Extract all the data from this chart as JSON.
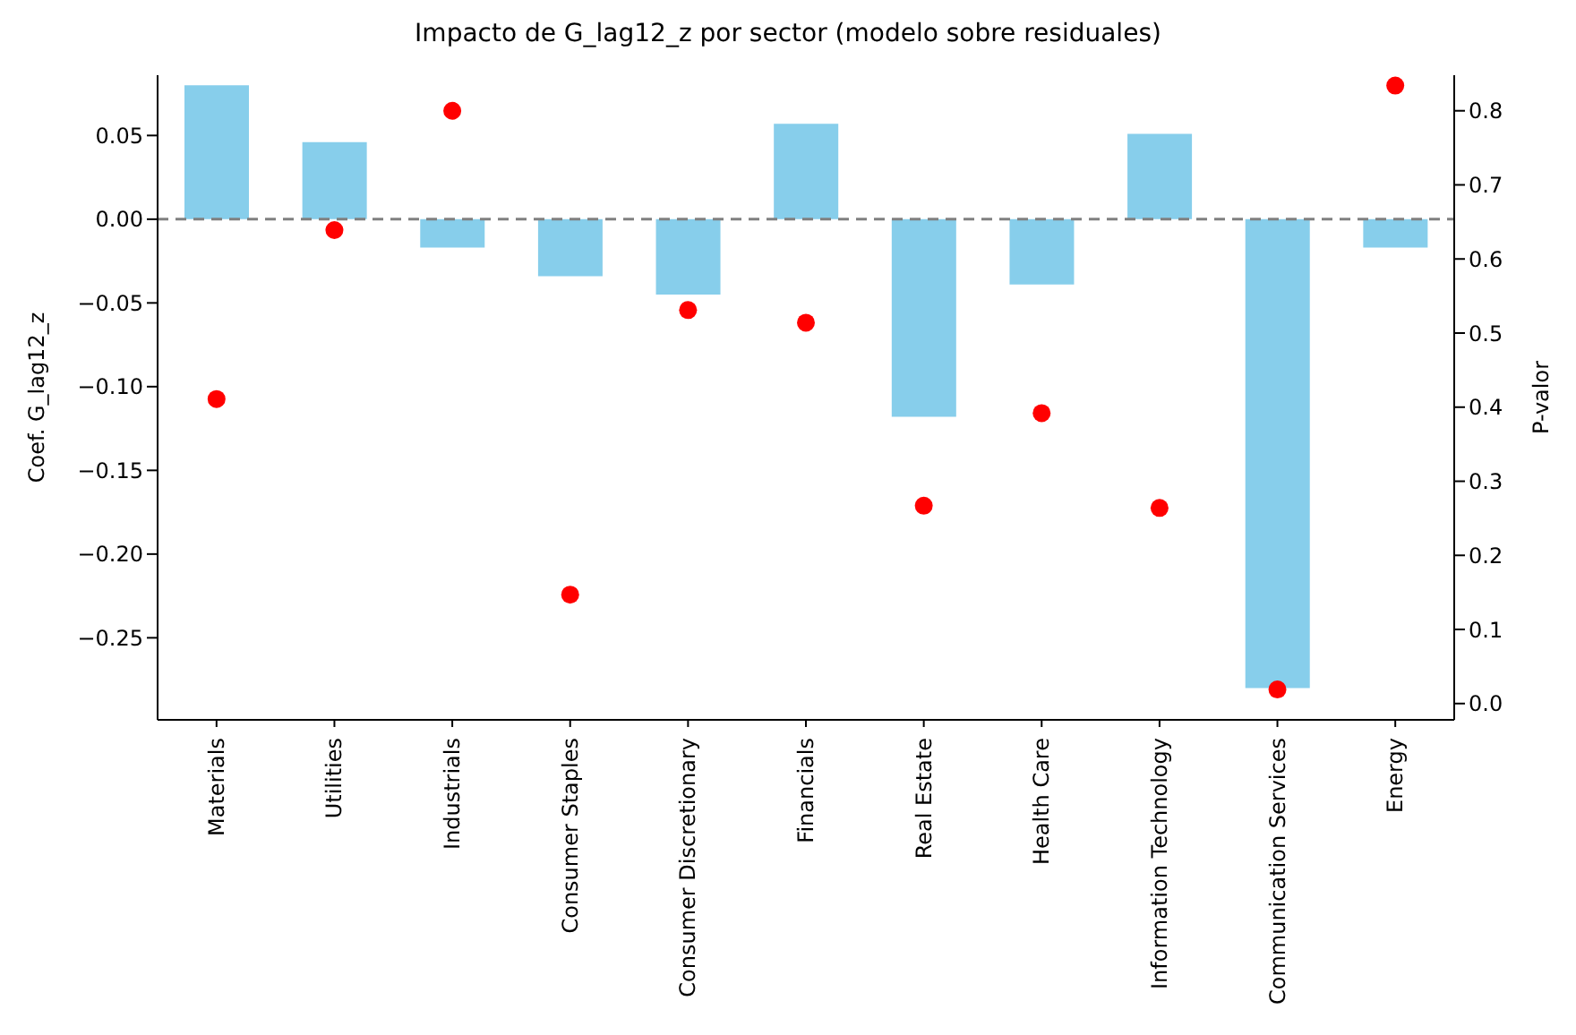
{
  "chart_data": {
    "type": "bar",
    "title": "Impacto de G_lag12_z por sector (modelo sobre residuales)",
    "ylabel": "Coef. G_lag12_z",
    "y2label": "P-valor",
    "marker": "circle",
    "categories": [
      "Materials",
      "Utilities",
      "Industrials",
      "Consumer Staples",
      "Consumer Discretionary",
      "Financials",
      "Real Estate",
      "Health Care",
      "Information Technology",
      "Communication Services",
      "Energy"
    ],
    "series": [
      {
        "color": "#87ceeb",
        "values": [
          0.08,
          0.046,
          -0.017,
          -0.034,
          -0.045,
          0.057,
          -0.118,
          -0.039,
          0.051,
          -0.28,
          -0.017
        ]
      },
      {
        "type": "scatter",
        "axis": "y2",
        "color": "#ff0000",
        "values": [
          0.411,
          0.639,
          0.8,
          0.147,
          0.531,
          0.514,
          0.267,
          0.392,
          0.264,
          0.019,
          0.834
        ]
      }
    ],
    "ylim": [
      -0.299,
      0.086
    ],
    "yticks": [
      {
        "value": -0.25,
        "label": "−0.25"
      },
      {
        "value": -0.2,
        "label": "−0.20"
      },
      {
        "value": -0.15,
        "label": "−0.15"
      },
      {
        "value": -0.1,
        "label": "−0.10"
      },
      {
        "value": -0.05,
        "label": "−0.05"
      },
      {
        "value": 0,
        "label": "0.00"
      },
      {
        "value": 0.05,
        "label": "0.05"
      }
    ],
    "y2lim": [
      -0.022,
      0.848
    ],
    "y2ticks": [
      {
        "value": 0,
        "label": "0.0"
      },
      {
        "value": 0.1,
        "label": "0.1"
      },
      {
        "value": 0.2,
        "label": "0.2"
      },
      {
        "value": 0.3,
        "label": "0.3"
      },
      {
        "value": 0.4,
        "label": "0.4"
      },
      {
        "value": 0.5,
        "label": "0.5"
      },
      {
        "value": 0.6,
        "label": "0.6"
      },
      {
        "value": 0.7,
        "label": "0.7"
      },
      {
        "value": 0.8,
        "label": "0.8"
      }
    ],
    "ref_lines": [
      {
        "axis": "y",
        "value": 0,
        "color": "#808080",
        "line_style": "dashed"
      }
    ]
  }
}
